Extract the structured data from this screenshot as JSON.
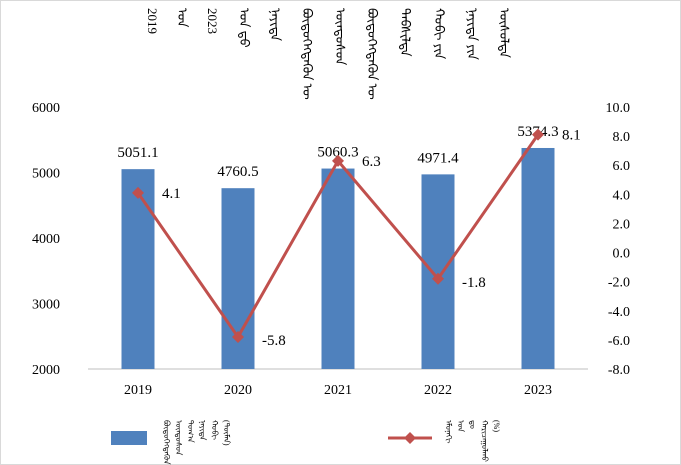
{
  "title_lines": [
    "2019",
    "ᠣᠨ",
    "2023",
    "ᠣᠨ ᠳ᠋ᠤ",
    "ᠨᠡᠶᠢᠲᠡ",
    "ᠪᠦᠲᠦᠭᠡᠭᠳᠡᠬᠦᠨ ᠦ",
    "ᠦᠨᠳᠦᠰᠦᠨ",
    "ᠪᠦᠲᠦᠭᠡᠭᠳᠡᠬᠦᠨ ᠦ",
    "ᠳᠡᠪᠰᠢᠯᠲᠡ",
    "ᠬᠤᠪᠢ ᠶᠢᠨ",
    "ᠨᠡᠶᠢᠲᠡ ᠶᠢᠨ",
    "ᠦᠰᠦᠯᠲᠡ"
  ],
  "legend": {
    "bar_label_lines": [
      "ᠪᠦᠲᠦᠭᠡᠭᠳᠡᠬᠦᠨ",
      "ᠦᠨᠳᠦᠰᠦᠨ",
      "ᠲᠣᠭ᠎ᠠ",
      "ᠨᠡᠶᠢᠲᠡ",
      "ᠬᠤᠪᠢ",
      "(ᠲᠦᠮᠡᠨ)"
    ],
    "line_label_lines": [
      "ᠡᠮᠦᠨᠡᠬᠢ",
      "ᠣᠨ",
      "ᠳᠤ",
      "ᠬᠠᠷᠢᠴᠠᠭᠤᠯᠬᠤ",
      "(%)"
    ]
  },
  "colors": {
    "bar": "#4f81bd",
    "line": "#c0504d",
    "text": "#000000"
  },
  "chart_data": {
    "type": "bar",
    "categories": [
      "2019",
      "2020",
      "2021",
      "2022",
      "2023"
    ],
    "series": [
      {
        "name": "bar",
        "kind": "bar",
        "axis": "left",
        "values": [
          5051.1,
          4760.5,
          5060.3,
          4971.4,
          5374.3
        ],
        "labels": [
          "5051.1",
          "4760.5",
          "5060.3",
          "4971.4",
          "5374.3"
        ]
      },
      {
        "name": "line",
        "kind": "line",
        "axis": "right",
        "values": [
          4.1,
          -5.8,
          6.3,
          -1.8,
          8.1
        ],
        "labels": [
          "4.1",
          "-5.8",
          "6.3",
          "-1.8",
          "8.1"
        ]
      }
    ],
    "y_left": {
      "min": 2000,
      "max": 6000,
      "step": 1000,
      "ticks": [
        "2000",
        "3000",
        "4000",
        "5000",
        "6000"
      ]
    },
    "y_right": {
      "min": -8,
      "max": 10,
      "step": 2,
      "ticks": [
        "-8.0",
        "-6.0",
        "-4.0",
        "-2.0",
        "0.0",
        "2.0",
        "4.0",
        "6.0",
        "8.0",
        "10.0"
      ]
    },
    "grid": false
  }
}
